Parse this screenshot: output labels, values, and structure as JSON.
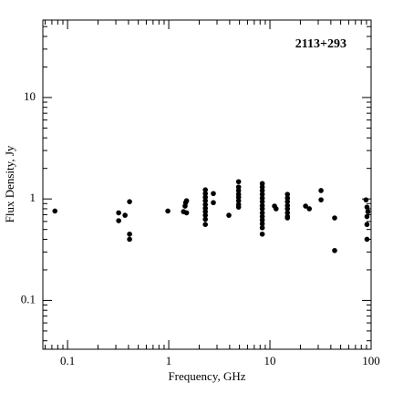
{
  "chart_data": {
    "type": "scatter",
    "annotation": "2113+293",
    "x_label": "Frequency, GHz",
    "y_label": "Flux Density, Jy",
    "x": [
      0.075,
      0.32,
      0.32,
      0.37,
      0.41,
      0.41,
      0.41,
      0.98,
      1.4,
      1.45,
      1.47,
      1.5,
      1.5,
      2.3,
      2.3,
      2.3,
      2.3,
      2.3,
      2.3,
      2.3,
      2.3,
      2.3,
      2.3,
      2.76,
      2.76,
      3.93,
      4.9,
      4.9,
      4.9,
      4.9,
      4.9,
      4.9,
      4.9,
      4.9,
      8.4,
      8.4,
      8.4,
      8.4,
      8.4,
      8.4,
      8.4,
      8.4,
      8.4,
      8.4,
      8.4,
      8.4,
      8.4,
      8.4,
      11.1,
      11.5,
      14.9,
      14.9,
      14.9,
      14.9,
      14.9,
      14.9,
      14.9,
      14.9,
      22.5,
      24.5,
      32,
      32,
      43.6,
      43.6,
      89,
      91,
      93,
      91,
      91,
      91
    ],
    "values": [
      0.76,
      0.61,
      0.73,
      0.69,
      0.94,
      0.45,
      0.4,
      0.76,
      0.75,
      0.85,
      0.92,
      0.96,
      0.73,
      1.23,
      1.13,
      1.04,
      0.96,
      0.88,
      0.81,
      0.75,
      0.69,
      0.63,
      0.56,
      1.13,
      0.92,
      0.69,
      1.48,
      1.31,
      1.21,
      1.11,
      1.04,
      0.96,
      0.88,
      0.83,
      1.42,
      1.31,
      1.21,
      1.11,
      1.02,
      0.94,
      0.86,
      0.8,
      0.73,
      0.67,
      0.62,
      0.57,
      0.52,
      0.45,
      0.85,
      0.8,
      1.11,
      1.02,
      0.94,
      0.86,
      0.8,
      0.73,
      0.67,
      0.65,
      0.85,
      0.8,
      1.21,
      0.98,
      0.65,
      0.31,
      0.98,
      0.83,
      0.75,
      0.67,
      0.56,
      0.4
    ],
    "color": "#000000",
    "xlog": true,
    "ylog": true,
    "xlim": [
      0.057,
      100
    ],
    "ylim": [
      0.033,
      58
    ],
    "xticks": [
      0.1,
      1,
      10,
      100
    ],
    "yticks": [
      0.1,
      1,
      10
    ],
    "minor_ticks": true
  }
}
